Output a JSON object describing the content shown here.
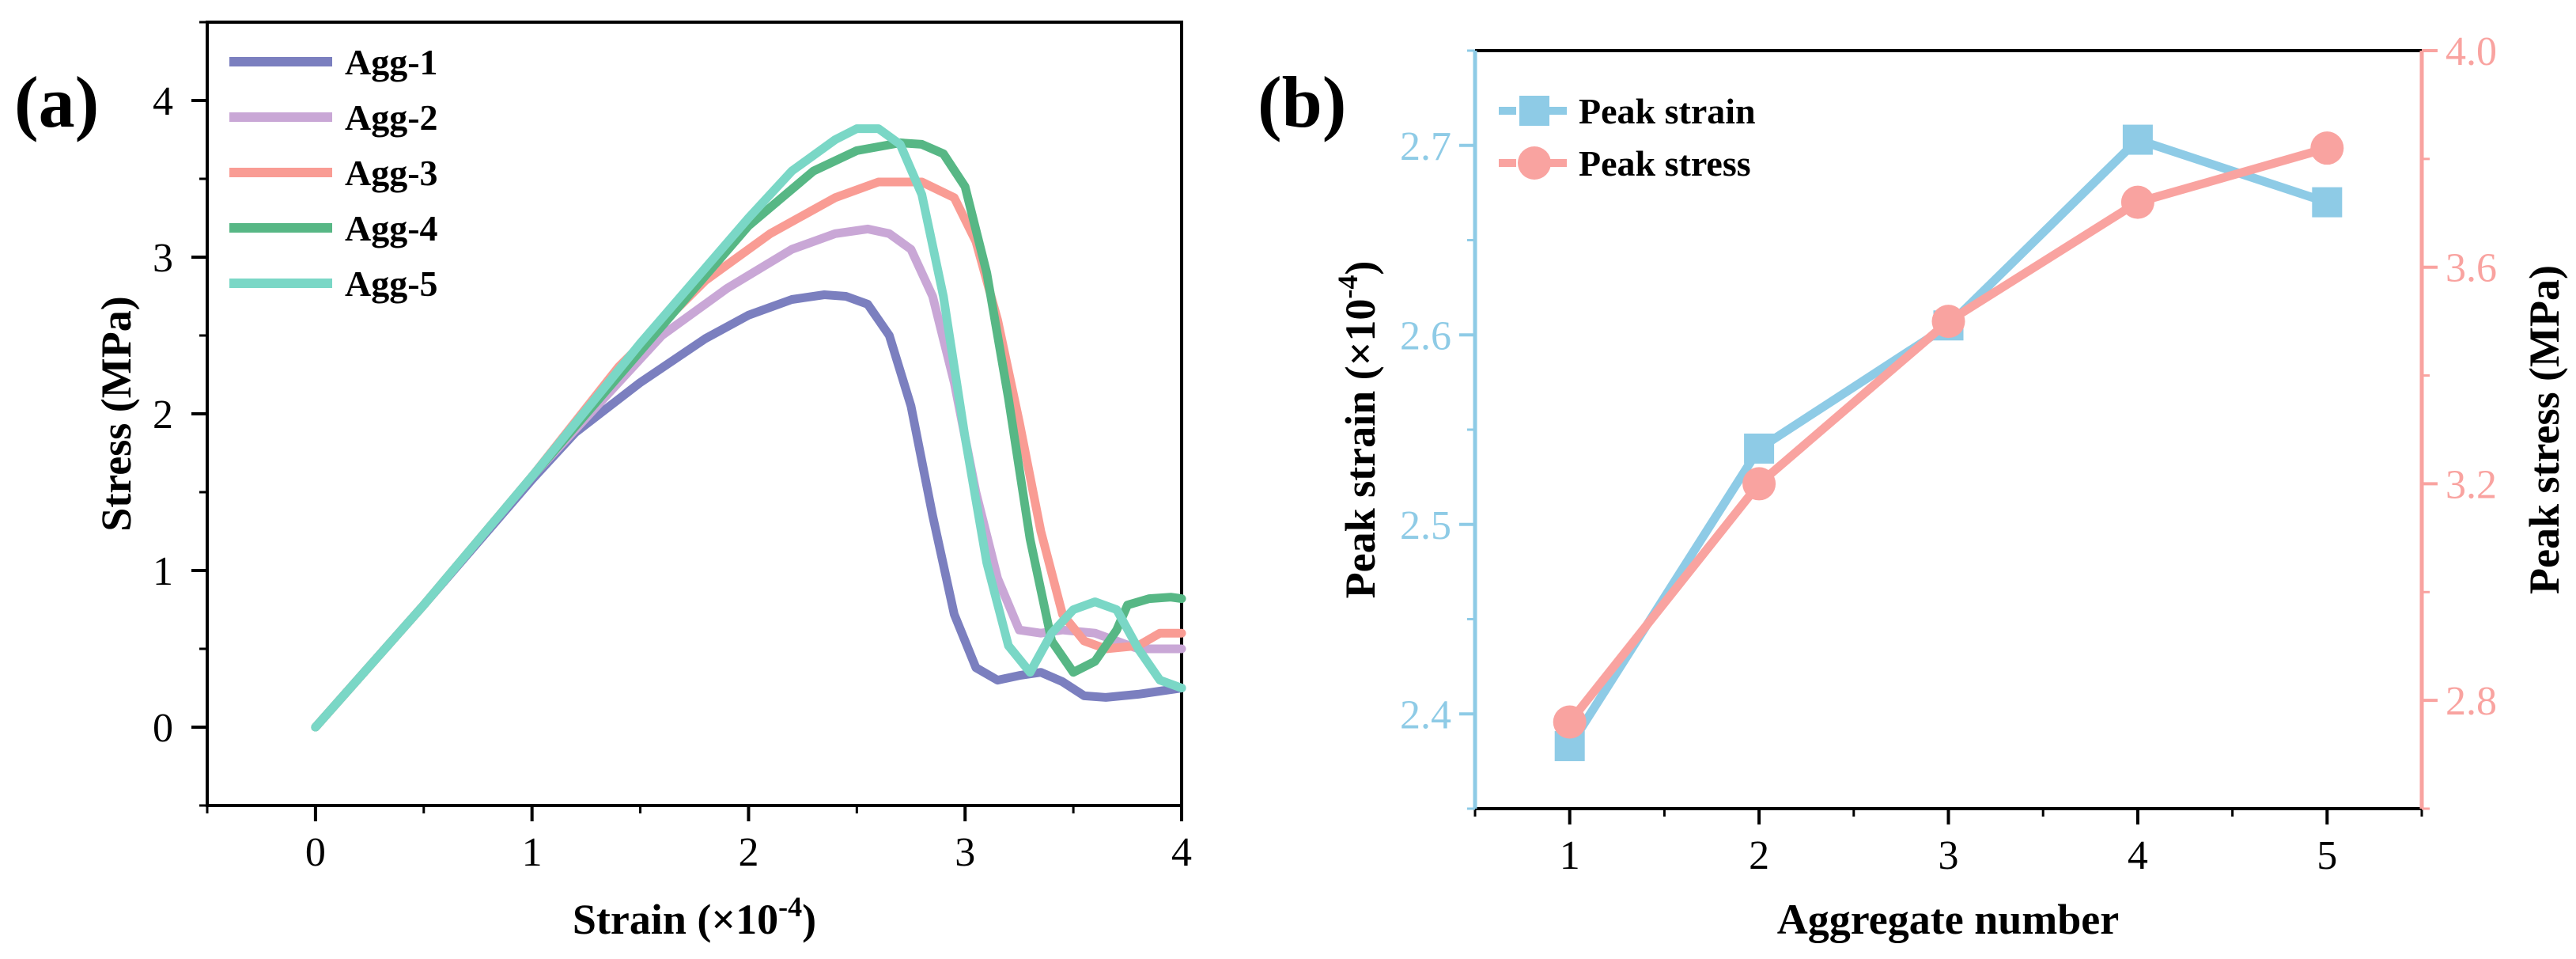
{
  "colors": {
    "agg1": "#7b7fbf",
    "agg2": "#c9a7d6",
    "agg3": "#f99c94",
    "agg4": "#57b785",
    "agg5": "#7ad7c6",
    "peak_strain": "#8ecbe6",
    "peak_stress": "#f9a3a0",
    "axis_black": "#000000"
  },
  "chart_data": [
    {
      "panel": "(a)",
      "type": "line",
      "xlabel_main": "Strain (×10",
      "xlabel_sup": "-4",
      "xlabel_close": ")",
      "ylabel": "Stress (MPa)",
      "xlim": [
        -0.5,
        4.0
      ],
      "ylim": [
        -0.5,
        4.5
      ],
      "xticks": [
        0,
        1,
        2,
        3,
        4
      ],
      "yticks": [
        0,
        1,
        2,
        3,
        4
      ],
      "legend_position": "top-left",
      "series": [
        {
          "name": "Agg-1",
          "color_key": "agg1",
          "x": [
            0,
            0.5,
            1.0,
            1.2,
            1.5,
            1.8,
            2.0,
            2.2,
            2.35,
            2.45,
            2.55,
            2.65,
            2.75,
            2.85,
            2.95,
            3.05,
            3.15,
            3.25,
            3.35,
            3.45,
            3.55,
            3.65,
            3.8,
            3.95,
            4.0
          ],
          "y": [
            0,
            0.78,
            1.58,
            1.88,
            2.2,
            2.48,
            2.63,
            2.73,
            2.76,
            2.75,
            2.7,
            2.5,
            2.05,
            1.35,
            0.72,
            0.38,
            0.3,
            0.33,
            0.35,
            0.29,
            0.2,
            0.19,
            0.21,
            0.24,
            0.25
          ]
        },
        {
          "name": "Agg-2",
          "color_key": "agg2",
          "x": [
            0,
            0.5,
            1.0,
            1.3,
            1.6,
            1.9,
            2.2,
            2.4,
            2.55,
            2.65,
            2.75,
            2.85,
            2.95,
            3.05,
            3.15,
            3.25,
            3.35,
            3.45,
            3.6,
            3.8,
            4.0
          ],
          "y": [
            0,
            0.78,
            1.6,
            2.05,
            2.5,
            2.8,
            3.05,
            3.15,
            3.18,
            3.15,
            3.05,
            2.75,
            2.2,
            1.5,
            0.95,
            0.62,
            0.6,
            0.62,
            0.6,
            0.5,
            0.5
          ]
        },
        {
          "name": "Agg-3",
          "color_key": "agg3",
          "x": [
            0,
            0.5,
            1.0,
            1.4,
            1.8,
            2.1,
            2.4,
            2.6,
            2.8,
            2.95,
            3.05,
            3.15,
            3.25,
            3.35,
            3.45,
            3.55,
            3.65,
            3.8,
            3.9,
            4.0
          ],
          "y": [
            0,
            0.78,
            1.6,
            2.3,
            2.85,
            3.15,
            3.38,
            3.48,
            3.48,
            3.38,
            3.1,
            2.6,
            1.95,
            1.25,
            0.72,
            0.55,
            0.5,
            0.52,
            0.6,
            0.6
          ]
        },
        {
          "name": "Agg-4",
          "color_key": "agg4",
          "x": [
            0,
            0.5,
            1.0,
            1.5,
            2.0,
            2.3,
            2.5,
            2.7,
            2.8,
            2.9,
            3.0,
            3.1,
            3.2,
            3.3,
            3.4,
            3.5,
            3.6,
            3.7,
            3.75,
            3.85,
            3.95,
            4.0
          ],
          "y": [
            0,
            0.78,
            1.6,
            2.4,
            3.2,
            3.55,
            3.68,
            3.73,
            3.72,
            3.66,
            3.45,
            2.9,
            2.1,
            1.2,
            0.55,
            0.35,
            0.42,
            0.62,
            0.78,
            0.82,
            0.83,
            0.82
          ]
        },
        {
          "name": "Agg-5",
          "color_key": "agg5",
          "x": [
            0,
            0.5,
            1.0,
            1.5,
            2.0,
            2.2,
            2.4,
            2.5,
            2.6,
            2.7,
            2.8,
            2.9,
            3.0,
            3.1,
            3.2,
            3.3,
            3.4,
            3.5,
            3.6,
            3.7,
            3.8,
            3.9,
            4.0
          ],
          "y": [
            0,
            0.78,
            1.6,
            2.45,
            3.25,
            3.55,
            3.75,
            3.82,
            3.82,
            3.72,
            3.4,
            2.75,
            1.85,
            1.05,
            0.52,
            0.35,
            0.6,
            0.75,
            0.8,
            0.75,
            0.5,
            0.3,
            0.25
          ]
        }
      ]
    },
    {
      "panel": "(b)",
      "type": "line",
      "xlabel": "Aggregate number",
      "ylabel_left_main": "Peak strain (×10",
      "ylabel_left_sup": "-4",
      "ylabel_left_close": ")",
      "ylabel_right": "Peak stress (MPa)",
      "xlim": [
        0.5,
        5.5
      ],
      "ylim_left": [
        2.35,
        2.75
      ],
      "ylim_right": [
        2.6,
        4.0
      ],
      "xticks": [
        1,
        2,
        3,
        4,
        5
      ],
      "yticks_left": [
        "2.4",
        "2.5",
        "2.6",
        "2.7"
      ],
      "yticks_right": [
        "2.8",
        "3.2",
        "3.6",
        "4.0"
      ],
      "legend_position": "top-left",
      "series": [
        {
          "name": "Peak strain",
          "axis": "left",
          "marker": "square",
          "color_key": "peak_strain",
          "x": [
            1,
            2,
            3,
            4,
            5
          ],
          "y": [
            2.383,
            2.54,
            2.605,
            2.703,
            2.67
          ]
        },
        {
          "name": "Peak stress",
          "axis": "right",
          "marker": "circle",
          "color_key": "peak_stress",
          "x": [
            1,
            2,
            3,
            4,
            5
          ],
          "y": [
            2.76,
            3.2,
            3.5,
            3.72,
            3.82
          ]
        }
      ]
    }
  ]
}
